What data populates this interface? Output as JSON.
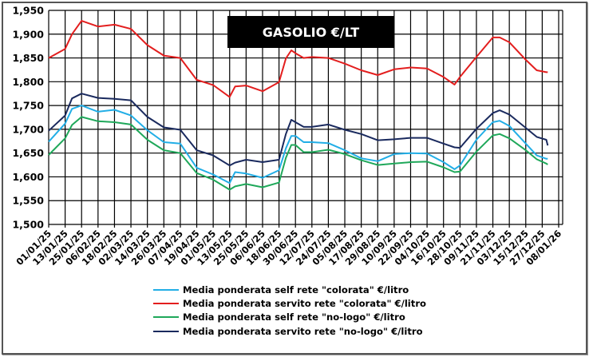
{
  "chart_data": {
    "type": "line",
    "title": "GASOLIO €/LT",
    "xlabel": "",
    "ylabel": "",
    "ylim": [
      1.5,
      1.95
    ],
    "yticks": [
      "1,500",
      "1,550",
      "1,600",
      "1,650",
      "1,700",
      "1,750",
      "1,800",
      "1,850",
      "1,900",
      "1,950"
    ],
    "xlim": [
      "01/01/25",
      "08/01/26"
    ],
    "xticks": [
      "01/01/25",
      "13/01/25",
      "25/01/25",
      "06/02/25",
      "18/02/25",
      "02/03/25",
      "14/03/25",
      "26/03/25",
      "07/04/25",
      "19/04/25",
      "01/05/25",
      "13/05/25",
      "25/05/25",
      "06/06/25",
      "18/06/25",
      "30/06/25",
      "12/07/25",
      "24/07/25",
      "05/08/25",
      "17/08/25",
      "29/08/25",
      "10/09/25",
      "22/09/25",
      "04/10/25",
      "16/10/25",
      "28/10/25",
      "09/11/25",
      "21/11/25",
      "03/12/25",
      "15/12/25",
      "27/12/25",
      "08/01/26"
    ],
    "grid": true,
    "legend_position": "bottom",
    "x": [
      "01/01/25",
      "13/01/25",
      "18/01/25",
      "25/01/25",
      "06/02/25",
      "18/02/25",
      "02/03/25",
      "14/03/25",
      "26/03/25",
      "07/04/25",
      "19/04/25",
      "01/05/25",
      "13/05/25",
      "17/05/25",
      "25/05/25",
      "06/06/25",
      "18/06/25",
      "23/06/25",
      "27/06/25",
      "30/06/25",
      "06/07/25",
      "12/07/25",
      "24/07/25",
      "05/08/25",
      "17/08/25",
      "29/08/25",
      "10/09/25",
      "22/09/25",
      "04/10/25",
      "16/10/25",
      "24/10/25",
      "28/10/25",
      "09/11/25",
      "21/11/25",
      "26/11/25",
      "03/12/25",
      "15/12/25",
      "23/12/25",
      "30/12/25",
      "31/12/25"
    ],
    "series": [
      {
        "name": "Media ponderata self rete \"colorata\" €/litro",
        "color": "#22aee6",
        "values": [
          1.674,
          1.712,
          1.743,
          1.75,
          1.737,
          1.741,
          1.729,
          1.698,
          1.673,
          1.67,
          1.619,
          1.605,
          1.587,
          1.61,
          1.607,
          1.598,
          1.614,
          1.66,
          1.686,
          1.686,
          1.673,
          1.673,
          1.671,
          1.656,
          1.639,
          1.633,
          1.648,
          1.65,
          1.649,
          1.631,
          1.616,
          1.624,
          1.678,
          1.715,
          1.718,
          1.707,
          1.67,
          1.645,
          1.638,
          1.638
        ]
      },
      {
        "name": "Media ponderata servito rete \"colorata\" €/litro",
        "color": "#e31e1e",
        "values": [
          1.85,
          1.869,
          1.9,
          1.928,
          1.916,
          1.92,
          1.911,
          1.877,
          1.855,
          1.85,
          1.804,
          1.793,
          1.768,
          1.79,
          1.792,
          1.78,
          1.799,
          1.849,
          1.866,
          1.86,
          1.85,
          1.852,
          1.85,
          1.838,
          1.824,
          1.814,
          1.826,
          1.83,
          1.828,
          1.81,
          1.794,
          1.81,
          1.852,
          1.893,
          1.893,
          1.883,
          1.846,
          1.824,
          1.82,
          1.82
        ]
      },
      {
        "name": "Media ponderata self rete \"no-logo\" €/litro",
        "color": "#1fa85a",
        "values": [
          1.646,
          1.681,
          1.709,
          1.726,
          1.717,
          1.715,
          1.71,
          1.678,
          1.656,
          1.65,
          1.608,
          1.594,
          1.573,
          1.58,
          1.585,
          1.578,
          1.588,
          1.64,
          1.667,
          1.667,
          1.652,
          1.652,
          1.657,
          1.648,
          1.635,
          1.625,
          1.628,
          1.631,
          1.632,
          1.62,
          1.61,
          1.611,
          1.653,
          1.687,
          1.69,
          1.681,
          1.656,
          1.637,
          1.628,
          1.626
        ]
      },
      {
        "name": "Media ponderata servito rete \"no-logo\" €/litro",
        "color": "#1a2a5e",
        "values": [
          1.697,
          1.729,
          1.765,
          1.775,
          1.766,
          1.764,
          1.761,
          1.726,
          1.704,
          1.699,
          1.656,
          1.645,
          1.624,
          1.63,
          1.636,
          1.631,
          1.636,
          1.69,
          1.72,
          1.715,
          1.705,
          1.705,
          1.71,
          1.699,
          1.69,
          1.677,
          1.679,
          1.682,
          1.682,
          1.67,
          1.662,
          1.661,
          1.701,
          1.734,
          1.74,
          1.731,
          1.703,
          1.684,
          1.678,
          1.666
        ]
      }
    ]
  }
}
